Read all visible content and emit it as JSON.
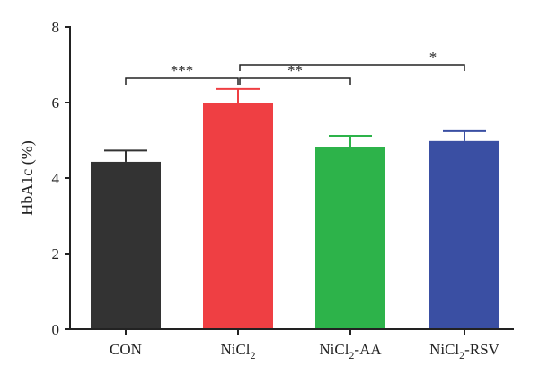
{
  "chart_data": {
    "type": "bar",
    "title": "",
    "xlabel": "",
    "ylabel": "HbA1c (%)",
    "ylim": [
      0,
      8
    ],
    "yticks": [
      "0",
      "2",
      "4",
      "6",
      "8"
    ],
    "grid": false,
    "legend": "none",
    "categories": [
      {
        "base": "CON",
        "sub": "",
        "suffix": ""
      },
      {
        "base": "NiCl",
        "sub": "2",
        "suffix": ""
      },
      {
        "base": "NiCl",
        "sub": "2",
        "suffix": "-AA"
      },
      {
        "base": "NiCl",
        "sub": "2",
        "suffix": "-RSV"
      }
    ],
    "values": [
      4.43,
      5.98,
      4.82,
      4.98
    ],
    "errors": [
      0.3,
      0.38,
      0.3,
      0.26
    ],
    "colors": [
      "#333333",
      "#ef3f43",
      "#2db34a",
      "#3a4fa3"
    ],
    "significance": [
      {
        "from": 0,
        "to": 1,
        "label": "***"
      },
      {
        "from": 1,
        "to": 2,
        "label": "**"
      },
      {
        "from": 1,
        "to": 3,
        "label": "*"
      }
    ]
  }
}
